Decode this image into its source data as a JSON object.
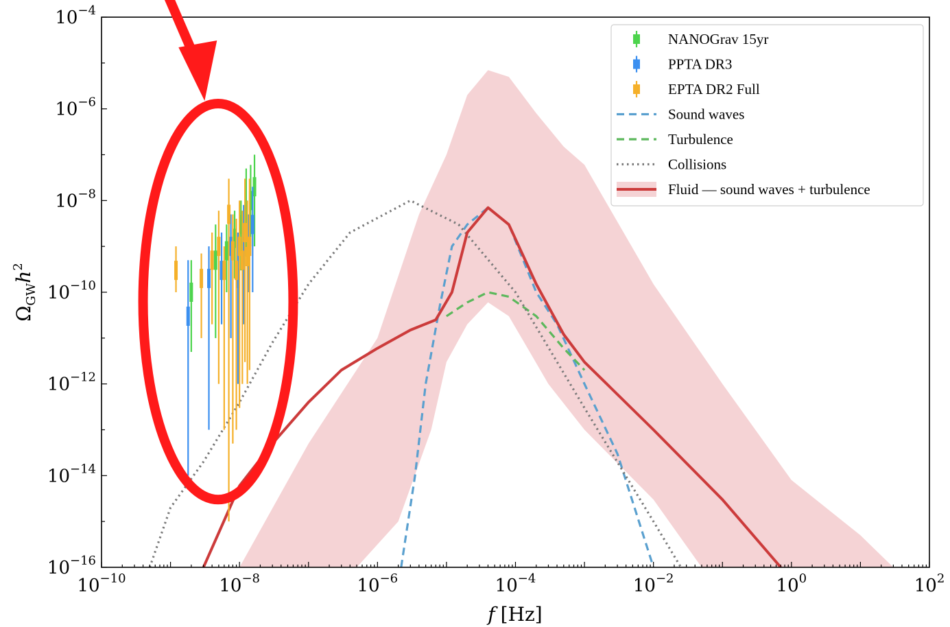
{
  "chart_data": {
    "type": "line",
    "xlabel_var": "f",
    "xlabel_unit": "[Hz]",
    "ylabel": "Ω_GW h^2",
    "ylabel_main": "Ω",
    "ylabel_sub": "GW",
    "ylabel_var": "h",
    "ylabel_pow": "2",
    "x_scale": "log",
    "y_scale": "log",
    "xlim": [
      1e-10,
      100
    ],
    "ylim": [
      1e-16,
      0.0001
    ],
    "x_ticks": [
      {
        "base": "10",
        "exp": "−10",
        "value": 1e-10
      },
      {
        "base": "10",
        "exp": "−8",
        "value": 1e-08
      },
      {
        "base": "10",
        "exp": "−6",
        "value": 1e-06
      },
      {
        "base": "10",
        "exp": "−4",
        "value": 0.0001
      },
      {
        "base": "10",
        "exp": "−2",
        "value": 0.01
      },
      {
        "base": "10",
        "exp": "0",
        "value": 1
      },
      {
        "base": "10",
        "exp": "2",
        "value": 100
      }
    ],
    "y_ticks": [
      {
        "base": "10",
        "exp": "−16",
        "value": 1e-16
      },
      {
        "base": "10",
        "exp": "−14",
        "value": 1e-14
      },
      {
        "base": "10",
        "exp": "−12",
        "value": 1e-12
      },
      {
        "base": "10",
        "exp": "−10",
        "value": 1e-10
      },
      {
        "base": "10",
        "exp": "−8",
        "value": 1e-08
      },
      {
        "base": "10",
        "exp": "−6",
        "value": 1e-06
      },
      {
        "base": "10",
        "exp": "−4",
        "value": 0.0001
      }
    ],
    "legend_position": "top-right",
    "colors": {
      "nanograv": "#4dd44d",
      "ppta": "#3b8ff0",
      "epta": "#f5b02a",
      "sound": "#5aa0cf",
      "turb": "#5cb85c",
      "coll": "#7a7a7a",
      "fluid": "#cc3b3b",
      "band": "#f5d3d5",
      "annotation": "#ff1a1a"
    },
    "series": [
      {
        "name": "Sound waves",
        "style": "dashed",
        "color": "#5aa0cf",
        "points": [
          [
            2.2e-06,
            1e-16
          ],
          [
            3.5e-06,
            1e-14
          ],
          [
            5e-06,
            1e-12
          ],
          [
            8e-06,
            5e-11
          ],
          [
            1.2e-05,
            1e-09
          ],
          [
            2e-05,
            3e-09
          ],
          [
            4e-05,
            7e-09
          ],
          [
            8e-05,
            3e-09
          ],
          [
            0.0002,
            1e-10
          ],
          [
            0.0004,
            2e-11
          ],
          [
            0.001,
            1e-12
          ],
          [
            0.003,
            3e-14
          ],
          [
            0.01,
            1e-16
          ]
        ]
      },
      {
        "name": "Turbulence",
        "style": "dashed",
        "color": "#5cb85c",
        "points": [
          [
            1e-05,
            3e-11
          ],
          [
            2e-05,
            6e-11
          ],
          [
            4e-05,
            1e-10
          ],
          [
            8e-05,
            8e-11
          ],
          [
            0.0002,
            3e-11
          ],
          [
            0.0005,
            6e-12
          ],
          [
            0.001,
            2e-12
          ]
        ]
      },
      {
        "name": "Collisions",
        "style": "dotted",
        "color": "#7a7a7a",
        "points": [
          [
            5e-10,
            1e-16
          ],
          [
            1e-09,
            2e-15
          ],
          [
            3e-09,
            2e-14
          ],
          [
            1e-08,
            4e-13
          ],
          [
            3e-08,
            8e-12
          ],
          [
            1e-07,
            1.5e-10
          ],
          [
            4e-07,
            2e-09
          ],
          [
            3e-06,
            1e-08
          ],
          [
            1.5e-05,
            3e-09
          ],
          [
            0.0001,
            1e-10
          ],
          [
            0.001,
            3e-13
          ],
          [
            0.01,
            1e-15
          ],
          [
            0.025,
            1e-16
          ]
        ]
      },
      {
        "name": "Fluid — sound waves + turbulence",
        "style": "solid",
        "color": "#cc3b3b",
        "points": [
          [
            3e-09,
            1e-16
          ],
          [
            1e-08,
            6e-15
          ],
          [
            3e-08,
            5e-14
          ],
          [
            1e-07,
            4e-13
          ],
          [
            3e-07,
            2e-12
          ],
          [
            1e-06,
            6e-12
          ],
          [
            3e-06,
            1.5e-11
          ],
          [
            7e-06,
            2.5e-11
          ],
          [
            1.2e-05,
            1e-10
          ],
          [
            2e-05,
            2e-09
          ],
          [
            4e-05,
            7e-09
          ],
          [
            8e-05,
            3e-09
          ],
          [
            0.0002,
            1.5e-10
          ],
          [
            0.0005,
            1.2e-11
          ],
          [
            0.001,
            3e-12
          ],
          [
            0.01,
            1e-13
          ],
          [
            0.1,
            3e-15
          ],
          [
            0.7,
            1e-16
          ]
        ]
      }
    ],
    "band": {
      "name": "Fluid — sound waves + turbulence",
      "upper": [
        [
          1e-08,
          1e-16
        ],
        [
          1e-07,
          5e-14
        ],
        [
          1e-06,
          1e-11
        ],
        [
          4e-06,
          5e-09
        ],
        [
          1e-05,
          1e-07
        ],
        [
          2e-05,
          2e-06
        ],
        [
          4e-05,
          7e-06
        ],
        [
          8e-05,
          5e-06
        ],
        [
          0.0002,
          8e-07
        ],
        [
          0.0005,
          1.5e-07
        ],
        [
          0.001,
          6e-08
        ],
        [
          0.01,
          1.5e-10
        ],
        [
          0.1,
          1e-12
        ],
        [
          1,
          8e-15
        ],
        [
          10,
          5e-16
        ],
        [
          30,
          1e-16
        ]
      ],
      "lower": [
        [
          1e-08,
          1e-16
        ],
        [
          5e-07,
          1e-16
        ],
        [
          2e-06,
          1e-15
        ],
        [
          6e-06,
          1e-13
        ],
        [
          1e-05,
          3e-12
        ],
        [
          2e-05,
          2e-11
        ],
        [
          4e-05,
          6e-11
        ],
        [
          8e-05,
          3e-11
        ],
        [
          0.00015,
          6e-12
        ],
        [
          0.0003,
          1e-12
        ],
        [
          0.001,
          1e-13
        ],
        [
          0.01,
          3e-15
        ],
        [
          0.05,
          1e-16
        ]
      ]
    },
    "pta_data": [
      {
        "name": "NANOGrav 15yr",
        "color": "#4dd44d",
        "points": [
          {
            "f": 2e-09,
            "y": 1e-10,
            "lo": 5e-12,
            "hi": 5e-10
          },
          {
            "f": 4.5e-09,
            "y": 5e-10,
            "lo": 1e-11,
            "hi": 3e-09
          },
          {
            "f": 6.5e-09,
            "y": 8e-10,
            "lo": 1e-10,
            "hi": 3e-09
          },
          {
            "f": 8.5e-09,
            "y": 1.5e-09,
            "lo": 2e-10,
            "hi": 6e-09
          },
          {
            "f": 1.05e-08,
            "y": 3e-09,
            "lo": 3e-10,
            "hi": 1e-08
          },
          {
            "f": 1.25e-08,
            "y": 6e-09,
            "lo": 6e-10,
            "hi": 5e-08
          },
          {
            "f": 1.45e-08,
            "y": 1e-08,
            "lo": 1e-09,
            "hi": 6e-08
          },
          {
            "f": 1.65e-08,
            "y": 2e-08,
            "lo": 1e-09,
            "hi": 1e-07
          }
        ]
      },
      {
        "name": "PPTA DR3",
        "color": "#3b8ff0",
        "points": [
          {
            "f": 1.8e-09,
            "y": 3e-11,
            "lo": 1e-14,
            "hi": 5e-10
          },
          {
            "f": 3.6e-09,
            "y": 2e-10,
            "lo": 1e-13,
            "hi": 1e-09
          },
          {
            "f": 5.5e-09,
            "y": 3e-10,
            "lo": 2e-11,
            "hi": 2e-09
          },
          {
            "f": 7.5e-09,
            "y": 1e-09,
            "lo": 1e-11,
            "hi": 5e-09
          },
          {
            "f": 9.5e-09,
            "y": 2e-10,
            "lo": 1e-12,
            "hi": 2e-09
          },
          {
            "f": 1.15e-08,
            "y": 1e-09,
            "lo": 2e-11,
            "hi": 8e-09
          },
          {
            "f": 1.35e-08,
            "y": 8e-10,
            "lo": 1e-10,
            "hi": 5e-09
          },
          {
            "f": 1.55e-08,
            "y": 3e-09,
            "lo": 1e-10,
            "hi": 2e-08
          }
        ]
      },
      {
        "name": "EPTA DR2 Full",
        "color": "#f5b02a",
        "points": [
          {
            "f": 1.2e-09,
            "y": 3e-10,
            "lo": 1e-10,
            "hi": 1e-09
          },
          {
            "f": 2.8e-09,
            "y": 2e-10,
            "lo": 1e-11,
            "hi": 7e-10
          },
          {
            "f": 4e-09,
            "y": 5e-10,
            "lo": 2e-11,
            "hi": 2e-09
          },
          {
            "f": 5e-09,
            "y": 1e-09,
            "lo": 1e-12,
            "hi": 6e-09
          },
          {
            "f": 6e-09,
            "y": 3e-10,
            "lo": 1e-13,
            "hi": 1e-09
          },
          {
            "f": 7e-09,
            "y": 5e-09,
            "lo": 1e-15,
            "hi": 3e-08
          },
          {
            "f": 8e-09,
            "y": 8e-10,
            "lo": 5e-14,
            "hi": 5e-09
          },
          {
            "f": 9e-09,
            "y": 3e-10,
            "lo": 1e-13,
            "hi": 4e-09
          },
          {
            "f": 1e-08,
            "y": 1e-09,
            "lo": 3e-13,
            "hi": 1e-08
          },
          {
            "f": 1.1e-08,
            "y": 5e-10,
            "lo": 1e-12,
            "hi": 6e-09
          },
          {
            "f": 1.2e-08,
            "y": 2e-09,
            "lo": 3e-12,
            "hi": 3e-08
          },
          {
            "f": 1.3e-08,
            "y": 6e-10,
            "lo": 1e-12,
            "hi": 1e-08
          },
          {
            "f": 1.4e-08,
            "y": 1e-09,
            "lo": 2e-12,
            "hi": 3e-08
          }
        ]
      }
    ],
    "legend": [
      {
        "label": "NANOGrav 15yr",
        "kind": "errorbar",
        "color": "#4dd44d"
      },
      {
        "label": "PPTA DR3",
        "kind": "errorbar",
        "color": "#3b8ff0"
      },
      {
        "label": "EPTA DR2 Full",
        "kind": "errorbar",
        "color": "#f5b02a"
      },
      {
        "label": "Sound waves",
        "kind": "dashed",
        "color": "#5aa0cf"
      },
      {
        "label": "Turbulence",
        "kind": "dashed",
        "color": "#5cb85c"
      },
      {
        "label": "Collisions",
        "kind": "dotted",
        "color": "#7a7a7a"
      },
      {
        "label": "Fluid — sound waves + turbulence",
        "kind": "solid-band",
        "color": "#cc3b3b"
      }
    ],
    "annotation": {
      "shape": "ellipse-and-arrow",
      "color": "#ff1a1a",
      "target": "PTA data points",
      "f_range": [
        4e-10,
        6e-08
      ],
      "y_range": [
        3e-15,
        1.3e-06
      ]
    }
  }
}
